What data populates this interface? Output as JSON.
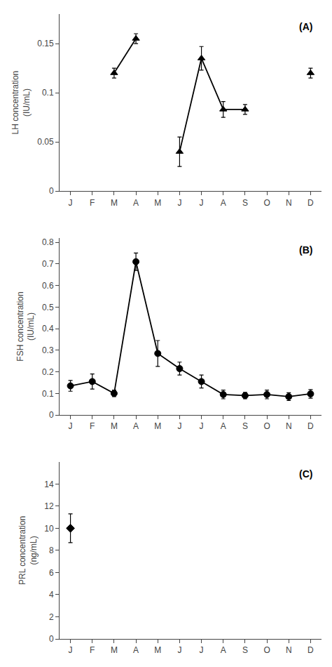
{
  "chart_data": [
    {
      "type": "line",
      "categories": [
        "J",
        "F",
        "M",
        "A",
        "M",
        "J",
        "J",
        "A",
        "S",
        "O",
        "N",
        "D"
      ],
      "values": [
        null,
        null,
        0.12,
        0.155,
        null,
        0.04,
        0.135,
        0.083,
        0.083,
        null,
        null,
        0.12
      ],
      "errors": [
        null,
        null,
        0.005,
        0.005,
        null,
        0.015,
        0.012,
        0.008,
        0.005,
        null,
        null,
        0.005
      ],
      "ylabel": "LH concentration\n(IU/mL)",
      "annotations": [
        "(A)"
      ],
      "ylim": [
        0,
        0.18
      ],
      "yticks": [
        0,
        0.05,
        0.1,
        0.15
      ],
      "marker": "triangle",
      "color": "#000000",
      "grid": false
    },
    {
      "type": "line",
      "categories": [
        "J",
        "F",
        "M",
        "A",
        "M",
        "J",
        "J",
        "A",
        "S",
        "O",
        "N",
        "D"
      ],
      "values": [
        0.135,
        0.155,
        0.1,
        0.71,
        0.285,
        0.215,
        0.155,
        0.095,
        0.09,
        0.095,
        0.085,
        0.098
      ],
      "errors": [
        0.025,
        0.035,
        0.015,
        0.04,
        0.06,
        0.03,
        0.03,
        0.02,
        0.015,
        0.02,
        0.018,
        0.02
      ],
      "ylabel": "FSH concentration\n(IU/mL)",
      "annotations": [
        "(B)"
      ],
      "ylim": [
        0,
        0.82
      ],
      "yticks": [
        0,
        0.1,
        0.2,
        0.3,
        0.4,
        0.5,
        0.6,
        0.7,
        0.8
      ],
      "marker": "circle",
      "color": "#000000",
      "grid": false
    },
    {
      "type": "line",
      "categories": [
        "J",
        "F",
        "M",
        "A",
        "M",
        "J",
        "J",
        "A",
        "S",
        "O",
        "N",
        "D"
      ],
      "values": [
        10.0,
        null,
        null,
        null,
        null,
        null,
        null,
        null,
        null,
        null,
        null,
        null
      ],
      "errors": [
        1.3,
        null,
        null,
        null,
        null,
        null,
        null,
        null,
        null,
        null,
        null,
        null
      ],
      "ylabel": "PRL concentration\n(ng/mL)",
      "annotations": [
        "(C)"
      ],
      "ylim": [
        0,
        16
      ],
      "yticks": [
        0,
        2,
        4,
        6,
        8,
        10,
        12,
        14
      ],
      "marker": "diamond",
      "color": "#000000",
      "grid": false
    }
  ]
}
